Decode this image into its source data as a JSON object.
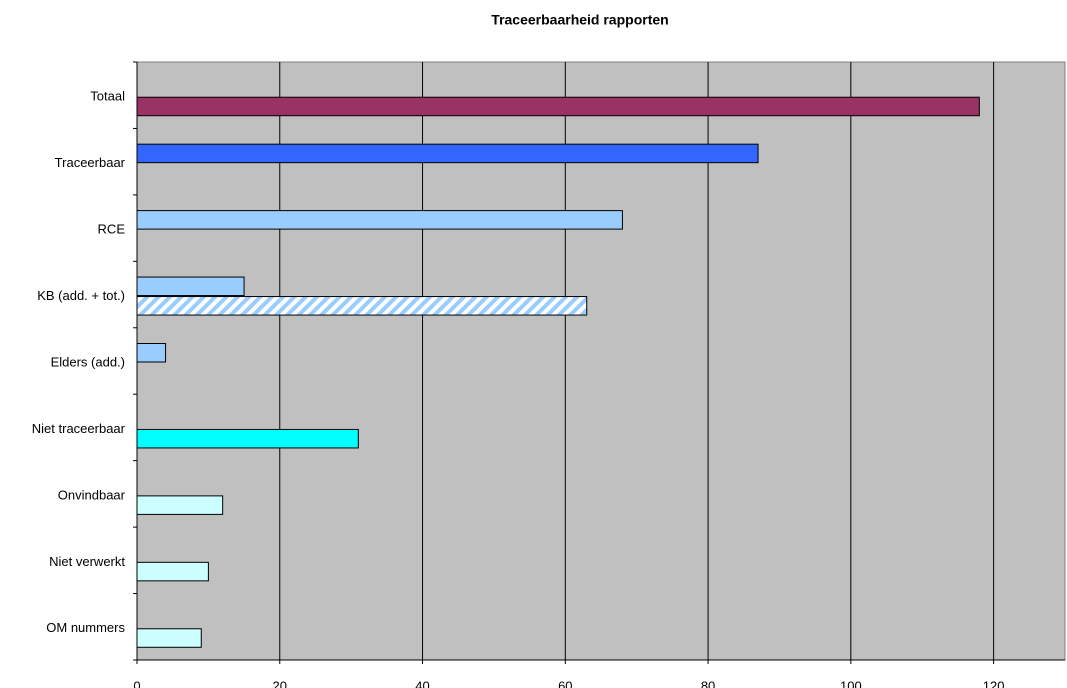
{
  "chart_data": {
    "type": "bar",
    "orientation": "horizontal",
    "title": "Traceerbaarheid rapporten",
    "categories": [
      "Totaal",
      "Traceerbaar",
      "RCE",
      "KB (add. + tot.)",
      "Elders (add.)",
      "Niet traceerbaar",
      "Onvindbaar",
      "Niet verwerkt",
      "OM nummers"
    ],
    "series": [
      {
        "values": [
          null,
          87,
          68,
          15,
          4,
          null,
          null,
          null,
          null
        ],
        "colors": [
          null,
          "#3366ff",
          "#99ccff",
          "#99ccff",
          "#99ccff",
          null,
          null,
          null,
          null
        ],
        "patterns": [
          null,
          null,
          null,
          null,
          null,
          null,
          null,
          null,
          null
        ]
      },
      {
        "values": [
          118,
          null,
          null,
          63,
          null,
          31,
          12,
          10,
          9
        ],
        "colors": [
          "#993366",
          null,
          null,
          "#99ccff",
          null,
          "#00ffff",
          "#ccffff",
          "#ccffff",
          "#ccffff"
        ],
        "patterns": [
          null,
          null,
          null,
          "diagonal",
          null,
          null,
          null,
          null,
          null
        ]
      }
    ],
    "xlim": [
      0,
      130
    ],
    "xticks": [
      0,
      20,
      40,
      60,
      80,
      100,
      120
    ],
    "grid": true,
    "plot_background": "#c0c0c0"
  }
}
